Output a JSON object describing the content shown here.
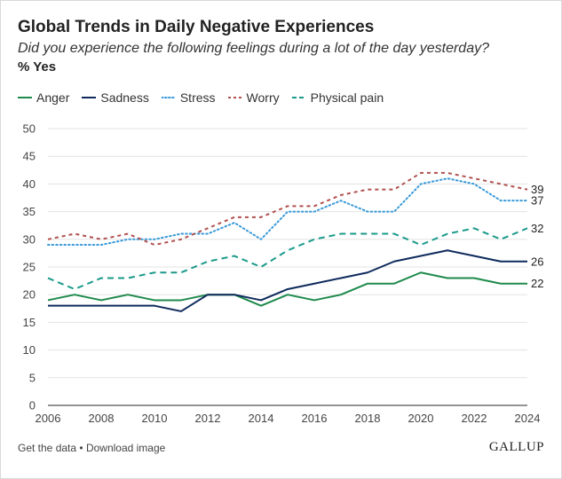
{
  "chart_data": {
    "type": "line",
    "title": "Global Trends in Daily Negative Experiences",
    "subtitle": "Did you experience the following feelings during a lot of the day yesterday?",
    "unit_label": "% Yes",
    "x": [
      2006,
      2007,
      2008,
      2009,
      2010,
      2011,
      2012,
      2013,
      2014,
      2015,
      2016,
      2017,
      2018,
      2019,
      2020,
      2021,
      2022,
      2023,
      2024
    ],
    "x_ticks": [
      2006,
      2008,
      2010,
      2012,
      2014,
      2016,
      2018,
      2020,
      2022,
      2024
    ],
    "y_ticks": [
      0,
      5,
      10,
      15,
      20,
      25,
      30,
      35,
      40,
      45,
      50
    ],
    "ylim": [
      0,
      50
    ],
    "xlim": [
      2006,
      2024
    ],
    "grid": true,
    "legend_position": "top-left",
    "series": [
      {
        "name": "Anger",
        "color": "#1e8a4c",
        "style": "solid",
        "end_label": "22",
        "values": [
          19,
          20,
          19,
          20,
          19,
          19,
          20,
          20,
          18,
          20,
          19,
          20,
          22,
          22,
          24,
          23,
          23,
          22,
          22
        ]
      },
      {
        "name": "Sadness",
        "color": "#0e2a5c",
        "style": "solid",
        "end_label": "26",
        "values": [
          18,
          18,
          18,
          18,
          18,
          17,
          20,
          20,
          19,
          21,
          22,
          23,
          24,
          26,
          27,
          28,
          27,
          26,
          26
        ]
      },
      {
        "name": "Stress",
        "color": "#3a9ad9",
        "style": "dotted",
        "end_label": "37",
        "values": [
          29,
          29,
          29,
          30,
          30,
          31,
          31,
          33,
          30,
          35,
          35,
          37,
          35,
          35,
          40,
          41,
          40,
          37,
          37
        ]
      },
      {
        "name": "Worry",
        "color": "#b0504f",
        "style": "dashed",
        "end_label": "39",
        "values": [
          30,
          31,
          30,
          31,
          29,
          30,
          32,
          34,
          34,
          36,
          36,
          38,
          39,
          39,
          42,
          42,
          41,
          40,
          39
        ]
      },
      {
        "name": "Physical pain",
        "color": "#1a9a8a",
        "style": "longdash",
        "end_label": "32",
        "values": [
          23,
          21,
          23,
          23,
          24,
          24,
          26,
          27,
          25,
          28,
          30,
          31,
          31,
          31,
          29,
          31,
          32,
          30,
          32
        ]
      }
    ]
  },
  "footer": {
    "get_data": "Get the data",
    "separator": "•",
    "download": "Download image"
  },
  "brand": {
    "logo_text": "GALLUP"
  }
}
